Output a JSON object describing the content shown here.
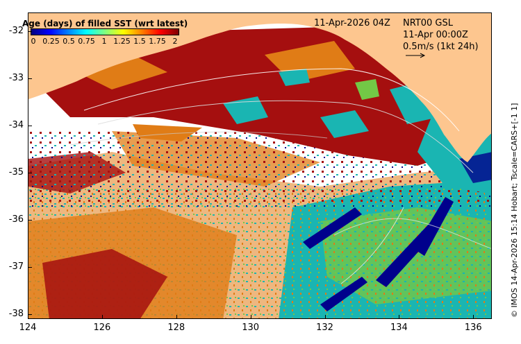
{
  "colorbar": {
    "title": "Age (days) of filled SST (wrt latest)",
    "ticks": [
      "0",
      "0.25",
      "0.5",
      "0.75",
      "1",
      "1.25",
      "1.5",
      "1.75",
      "2"
    ],
    "colors": [
      "#00007f",
      "#0000ff",
      "#0080ff",
      "#00ffff",
      "#80ff80",
      "#ffff00",
      "#ff8000",
      "#ff0000",
      "#7f0000"
    ]
  },
  "header": {
    "timestamp": "11-Apr-2026 04Z",
    "product": "NRT00 GSL",
    "analysis_time": "11-Apr 00:00Z",
    "vector_scale": "0.5m/s (1kt 24h)"
  },
  "axes": {
    "y_ticks": [
      "-32",
      "-33",
      "-34",
      "-35",
      "-36",
      "-37",
      "-38"
    ],
    "x_ticks": [
      "124",
      "126",
      "128",
      "130",
      "132",
      "134",
      "136"
    ],
    "lon_range": [
      124,
      136.5
    ],
    "lat_range": [
      -38.1,
      -31.6
    ]
  },
  "credit": "© IMOS 14-Apr-2026 15:14 Hobart; Tscale=CARS+[-1 1]",
  "colors": {
    "land": "#fdc68f",
    "missing": "#ffffff",
    "age_dark_red": "#a50f0f",
    "age_orange": "#e07c16",
    "age_teal": "#1ab5b2",
    "age_green": "#73c846",
    "age_navy": "#00008c"
  }
}
